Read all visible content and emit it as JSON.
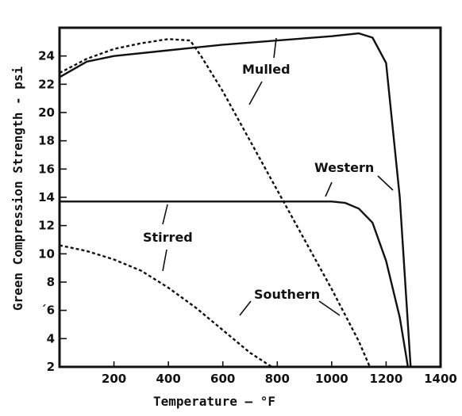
{
  "chart_data": {
    "type": "line",
    "title": "",
    "xlabel": "Temperature — °F",
    "ylabel": "Green  Compression  Strength - psi",
    "xlim": [
      0,
      1400
    ],
    "ylim": [
      2,
      26
    ],
    "x_ticks": [
      200,
      400,
      600,
      800,
      1000,
      1200,
      1400
    ],
    "y_ticks": [
      2,
      4,
      6,
      8,
      10,
      12,
      14,
      16,
      18,
      20,
      22,
      24
    ],
    "y_tick_labels": [
      "2",
      "4",
      "´6",
      "8",
      "10",
      "12",
      "14",
      "16",
      "18",
      "20",
      "22",
      "24"
    ],
    "grid": false,
    "series": [
      {
        "name": "Mulled",
        "style": "dashed",
        "x": [
          0,
          100,
          200,
          300,
          400,
          480,
          520,
          600,
          700,
          800,
          900,
          1000,
          1100,
          1140
        ],
        "y": [
          22.8,
          23.8,
          24.5,
          24.9,
          25.2,
          25.1,
          24.0,
          21.5,
          18.0,
          14.5,
          11.0,
          7.5,
          3.8,
          2.0
        ]
      },
      {
        "name": "Western",
        "style": "solid",
        "x": [
          0,
          100,
          200,
          400,
          600,
          800,
          1000,
          1100,
          1150,
          1200,
          1250,
          1290
        ],
        "y": [
          22.5,
          23.6,
          24.0,
          24.4,
          24.8,
          25.1,
          25.4,
          25.6,
          25.3,
          23.5,
          14.0,
          2.0
        ]
      },
      {
        "name": "Stirred",
        "style": "solid",
        "x": [
          0,
          200,
          400,
          600,
          800,
          1000,
          1050,
          1100,
          1150,
          1200,
          1250,
          1280
        ],
        "y": [
          13.7,
          13.7,
          13.7,
          13.7,
          13.7,
          13.7,
          13.6,
          13.2,
          12.2,
          9.5,
          5.5,
          2.0
        ]
      },
      {
        "name": "Southern",
        "style": "dashed",
        "x": [
          0,
          100,
          200,
          300,
          400,
          500,
          600,
          700,
          780
        ],
        "y": [
          10.6,
          10.2,
          9.6,
          8.8,
          7.6,
          6.2,
          4.6,
          3.0,
          2.0
        ]
      }
    ]
  }
}
